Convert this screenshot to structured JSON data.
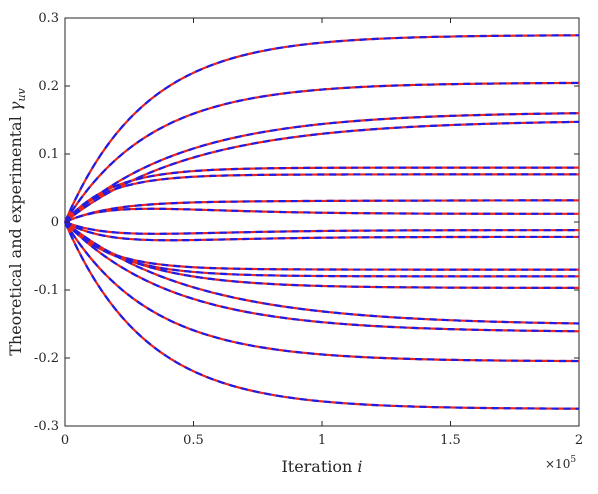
{
  "chart_data": {
    "type": "line",
    "xlabel": {
      "text": "Iteration ",
      "var": "i"
    },
    "ylabel": {
      "text": "Theoretical and experimental ",
      "var": "γ",
      "sub": "uv"
    },
    "xlim": [
      0,
      200000
    ],
    "ylim": [
      -0.3,
      0.3
    ],
    "x_ticks": [
      0,
      50000,
      100000,
      150000,
      200000
    ],
    "x_tick_labels": [
      "0",
      "0.5",
      "1",
      "1.5",
      "2"
    ],
    "x_multiplier": {
      "base": "×10",
      "exp": "5"
    },
    "y_ticks": [
      -0.3,
      -0.2,
      -0.1,
      0,
      0.1,
      0.2,
      0.3
    ],
    "y_tick_labels": [
      "-0.3",
      "-0.2",
      "-0.1",
      "0",
      "0.1",
      "0.2",
      "0.3"
    ],
    "grid": false,
    "colors": {
      "theoretical": "#e8241c",
      "experimental": "#1c1ce8",
      "axis": "#262626"
    },
    "series_style": {
      "theoretical": "solid",
      "experimental": "dashed"
    },
    "curves": [
      {
        "final": 0.275,
        "k": 3.2,
        "bump": 0
      },
      {
        "final": 0.205,
        "k": 3.0,
        "bump": 0
      },
      {
        "final": 0.162,
        "k": 2.2,
        "bump": 0
      },
      {
        "final": 0.15,
        "k": 2.0,
        "bump": 0
      },
      {
        "final": 0.08,
        "k": 5.5,
        "bump": 0
      },
      {
        "final": 0.07,
        "k": 6.0,
        "bump": 0
      },
      {
        "final": 0.032,
        "k": 2.5,
        "bump": 0.022
      },
      {
        "final": 0.012,
        "k": 2.5,
        "bump": 0.036
      },
      {
        "final": -0.012,
        "k": 2.5,
        "bump": -0.03
      },
      {
        "final": -0.022,
        "k": 2.5,
        "bump": -0.04
      },
      {
        "final": -0.07,
        "k": 6.0,
        "bump": 0
      },
      {
        "final": -0.08,
        "k": 5.0,
        "bump": 0
      },
      {
        "final": -0.097,
        "k": 3.5,
        "bump": 0
      },
      {
        "final": -0.152,
        "k": 2.0,
        "bump": 0
      },
      {
        "final": -0.162,
        "k": 2.4,
        "bump": 0
      },
      {
        "final": -0.205,
        "k": 3.0,
        "bump": 0
      },
      {
        "final": -0.275,
        "k": 3.2,
        "bump": 0
      }
    ]
  }
}
